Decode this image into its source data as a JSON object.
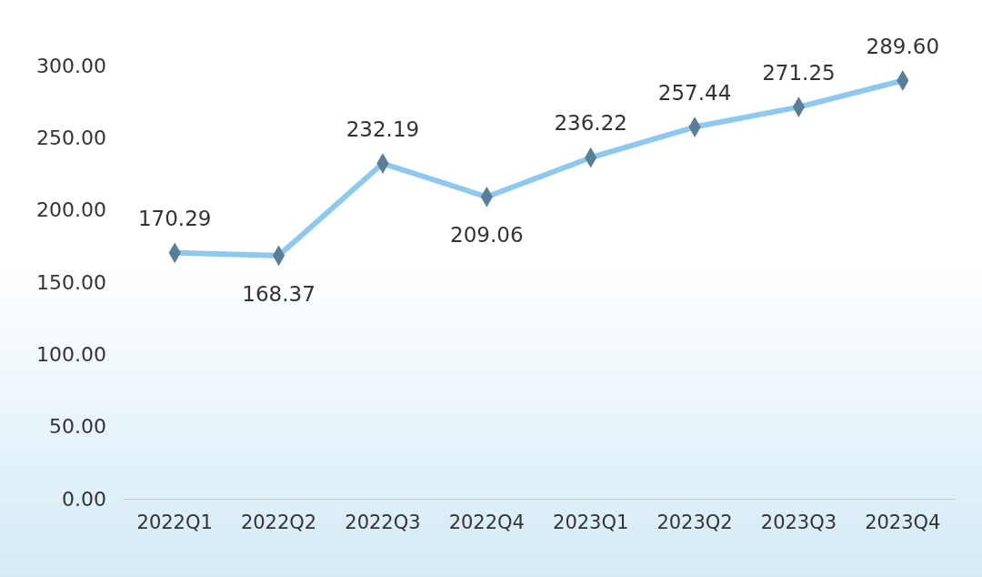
{
  "chart_data": {
    "type": "line",
    "categories": [
      "2022Q1",
      "2022Q2",
      "2022Q3",
      "2022Q4",
      "2023Q1",
      "2023Q2",
      "2023Q3",
      "2023Q4"
    ],
    "series": [
      {
        "color": "#8ec8ee",
        "values": [
          170.29,
          168.37,
          232.19,
          209.06,
          236.22,
          257.44,
          271.25,
          289.6
        ],
        "value_labels": [
          "170.29",
          "168.37",
          "232.19",
          "209.06",
          "236.22",
          "257.44",
          "271.25",
          "289.60"
        ]
      }
    ],
    "ylim": [
      0,
      300
    ],
    "yticks": [
      {
        "value": 0,
        "label": "0.00"
      },
      {
        "value": 50,
        "label": "50.00"
      },
      {
        "value": 100,
        "label": "100.00"
      },
      {
        "value": 150,
        "label": "150.00"
      },
      {
        "value": 200,
        "label": "200.00"
      },
      {
        "value": 250,
        "label": "250.00"
      },
      {
        "value": 300,
        "label": "300.00"
      }
    ],
    "grid": false,
    "marker": "diamond",
    "line_style": "solid"
  }
}
